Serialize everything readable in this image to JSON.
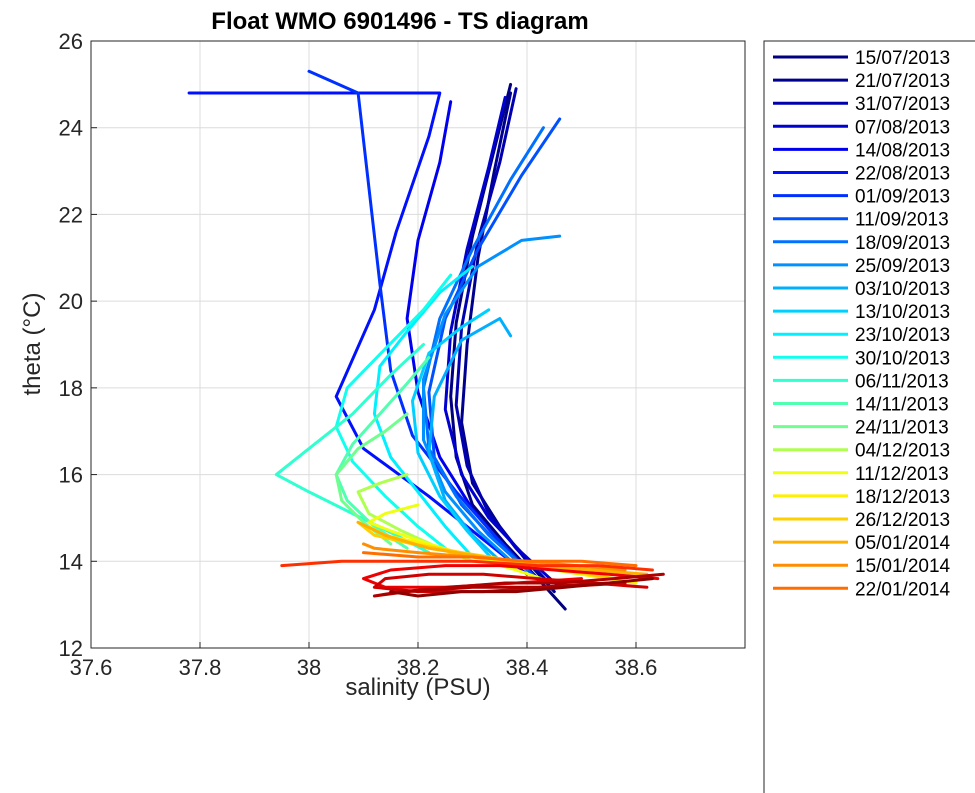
{
  "chart_data": {
    "type": "line",
    "title": "Float WMO 6901496 - TS diagram",
    "xlabel": "salinity (PSU)",
    "ylabel": "theta (°C)",
    "xlim": [
      37.6,
      38.8
    ],
    "ylim": [
      12,
      26
    ],
    "xticks": [
      "37.6",
      "37.8",
      "38",
      "38.2",
      "38.4",
      "38.6"
    ],
    "yticks": [
      "12",
      "14",
      "16",
      "18",
      "20",
      "22",
      "24",
      "26"
    ],
    "grid": true,
    "legend_position": "right outside",
    "series": [
      {
        "name": "15/07/2013",
        "color": "#000080",
        "x": [
          38.47,
          38.42,
          38.36,
          38.3,
          38.27,
          38.26,
          38.27,
          38.3,
          38.34,
          38.37
        ],
        "y": [
          12.9,
          13.6,
          14.4,
          15.3,
          16.4,
          17.8,
          19.5,
          21.5,
          23.5,
          25.0
        ]
      },
      {
        "name": "21/07/2013",
        "color": "#00008F",
        "x": [
          38.45,
          38.4,
          38.35,
          38.3,
          38.28,
          38.29,
          38.31,
          38.34,
          38.37
        ],
        "y": [
          13.3,
          14.0,
          14.8,
          15.8,
          17.2,
          19.0,
          21.0,
          23.0,
          24.8
        ]
      },
      {
        "name": "31/07/2013",
        "color": "#0000AF",
        "x": [
          38.44,
          38.38,
          38.33,
          38.29,
          38.27,
          38.28,
          38.31,
          38.35,
          38.38
        ],
        "y": [
          13.5,
          14.3,
          15.1,
          16.2,
          17.6,
          19.4,
          21.4,
          23.2,
          24.9
        ]
      },
      {
        "name": "07/08/2013",
        "color": "#0000CF",
        "x": [
          38.46,
          38.39,
          38.33,
          38.28,
          38.25,
          38.26,
          38.29,
          38.33,
          38.36
        ],
        "y": [
          13.4,
          14.2,
          15.0,
          16.0,
          17.5,
          19.3,
          21.2,
          23.1,
          24.7
        ]
      },
      {
        "name": "14/08/2013",
        "color": "#0000EF",
        "x": [
          38.42,
          38.36,
          38.3,
          38.24,
          38.2,
          38.18,
          38.2,
          38.24,
          38.26
        ],
        "y": [
          13.6,
          14.3,
          15.2,
          16.4,
          17.9,
          19.6,
          21.4,
          23.2,
          24.6
        ]
      },
      {
        "name": "22/08/2013",
        "color": "#0010FF",
        "x": [
          38.4,
          38.32,
          38.22,
          38.1,
          38.05,
          38.12,
          38.16,
          38.22,
          38.24,
          37.78
        ],
        "y": [
          13.7,
          14.5,
          15.5,
          16.6,
          17.8,
          19.8,
          21.6,
          23.8,
          24.8,
          24.8
        ]
      },
      {
        "name": "01/09/2013",
        "color": "#0030FF",
        "x": [
          38.4,
          38.34,
          38.27,
          38.19,
          38.15,
          38.13,
          38.09,
          38.0
        ],
        "y": [
          13.8,
          14.6,
          15.6,
          16.9,
          18.4,
          20.4,
          24.8,
          25.3
        ]
      },
      {
        "name": "11/09/2013",
        "color": "#0050FF",
        "x": [
          38.41,
          38.34,
          38.28,
          38.23,
          38.22,
          38.25,
          38.31,
          38.39,
          38.46
        ],
        "y": [
          13.7,
          14.5,
          15.3,
          16.4,
          17.9,
          19.6,
          21.2,
          22.9,
          24.2
        ]
      },
      {
        "name": "18/09/2013",
        "color": "#0070FF",
        "x": [
          38.4,
          38.33,
          38.27,
          38.22,
          38.21,
          38.24,
          38.3,
          38.37,
          38.43
        ],
        "y": [
          13.8,
          14.6,
          15.5,
          16.6,
          18.0,
          19.6,
          21.2,
          22.8,
          24.0
        ]
      },
      {
        "name": "25/09/2013",
        "color": "#0090FF",
        "x": [
          38.38,
          38.31,
          38.25,
          38.21,
          38.21,
          38.25,
          38.31,
          38.39,
          38.46
        ],
        "y": [
          13.9,
          14.7,
          15.6,
          16.8,
          18.2,
          19.7,
          20.8,
          21.4,
          21.5
        ]
      },
      {
        "name": "03/10/2013",
        "color": "#00B0FF",
        "x": [
          38.36,
          38.3,
          38.25,
          38.22,
          38.23,
          38.28,
          38.35,
          38.37
        ],
        "y": [
          13.9,
          14.6,
          15.4,
          16.5,
          17.8,
          19.1,
          19.6,
          19.2
        ]
      },
      {
        "name": "13/10/2013",
        "color": "#00D0FF",
        "x": [
          38.34,
          38.29,
          38.24,
          38.2,
          38.19,
          38.22,
          38.28,
          38.33
        ],
        "y": [
          14.0,
          14.7,
          15.5,
          16.5,
          17.7,
          18.8,
          19.4,
          19.8
        ]
      },
      {
        "name": "23/10/2013",
        "color": "#00F0FF",
        "x": [
          38.3,
          38.25,
          38.2,
          38.15,
          38.12,
          38.13,
          38.18,
          38.24,
          38.3
        ],
        "y": [
          14.1,
          14.8,
          15.6,
          16.4,
          17.4,
          18.5,
          19.3,
          20.2,
          20.8
        ]
      },
      {
        "name": "30/10/2013",
        "color": "#10FFEF",
        "x": [
          38.26,
          38.2,
          38.14,
          38.08,
          38.05,
          38.07,
          38.14,
          38.21,
          38.26
        ],
        "y": [
          14.2,
          14.8,
          15.5,
          16.3,
          17.1,
          18.0,
          18.9,
          19.8,
          20.6
        ]
      },
      {
        "name": "06/11/2013",
        "color": "#30FFCF",
        "x": [
          38.22,
          38.16,
          38.08,
          38.0,
          37.94,
          38.0,
          38.08,
          38.15,
          38.21
        ],
        "y": [
          14.2,
          14.6,
          15.1,
          15.6,
          16.0,
          16.6,
          17.4,
          18.3,
          19.0
        ]
      },
      {
        "name": "14/11/2013",
        "color": "#50FFAF",
        "x": [
          38.18,
          38.12,
          38.07,
          38.05,
          38.08,
          38.13,
          38.18,
          38.22
        ],
        "y": [
          14.3,
          14.8,
          15.4,
          16.0,
          16.7,
          17.4,
          18.1,
          18.7
        ]
      },
      {
        "name": "24/11/2013",
        "color": "#70FF8F",
        "x": [
          38.15,
          38.1,
          38.06,
          38.05,
          38.09,
          38.14,
          38.18
        ],
        "y": [
          14.4,
          14.9,
          15.4,
          16.0,
          16.6,
          17.0,
          17.4
        ]
      },
      {
        "name": "04/12/2013",
        "color": "#AFFF50",
        "x": [
          38.3,
          38.24,
          38.17,
          38.11,
          38.09,
          38.13,
          38.18
        ],
        "y": [
          14.0,
          14.3,
          14.7,
          15.1,
          15.6,
          15.8,
          16.0
        ]
      },
      {
        "name": "11/12/2013",
        "color": "#EFFF10",
        "x": [
          38.45,
          38.38,
          38.3,
          38.22,
          38.15,
          38.11,
          38.14,
          38.2
        ],
        "y": [
          13.5,
          13.8,
          14.1,
          14.4,
          14.7,
          14.9,
          15.1,
          15.3
        ]
      },
      {
        "name": "18/12/2013",
        "color": "#FFEF00",
        "x": [
          38.6,
          38.5,
          38.4,
          38.3,
          38.21,
          38.14,
          38.11
        ],
        "y": [
          13.5,
          13.7,
          13.9,
          14.1,
          14.4,
          14.6,
          14.8
        ]
      },
      {
        "name": "26/12/2013",
        "color": "#FFCF00",
        "x": [
          38.56,
          38.47,
          38.38,
          38.28,
          38.19,
          38.12,
          38.09
        ],
        "y": [
          13.6,
          13.8,
          14.0,
          14.2,
          14.4,
          14.6,
          14.9
        ]
      },
      {
        "name": "05/01/2014",
        "color": "#FFAF00",
        "x": [
          38.62,
          38.52,
          38.42,
          38.32,
          38.22,
          38.14,
          38.09
        ],
        "y": [
          13.7,
          13.8,
          13.9,
          14.1,
          14.3,
          14.6,
          14.9
        ]
      },
      {
        "name": "15/01/2014",
        "color": "#FF8F00",
        "x": [
          38.58,
          38.49,
          38.4,
          38.3,
          38.2,
          38.12,
          38.1
        ],
        "y": [
          13.8,
          13.9,
          14.0,
          14.1,
          14.2,
          14.3,
          14.4
        ]
      },
      {
        "name": "22/01/2014",
        "color": "#FF6F00",
        "x": [
          38.6,
          38.5,
          38.4,
          38.3,
          38.2,
          38.1
        ],
        "y": [
          13.9,
          14.0,
          14.0,
          14.1,
          14.1,
          14.2
        ]
      },
      {
        "name": "",
        "color": "#FF3000",
        "x": [
          38.63,
          38.53,
          38.42,
          38.3,
          38.18,
          38.06,
          37.95
        ],
        "y": [
          13.8,
          13.9,
          13.9,
          14.0,
          14.0,
          14.0,
          13.9
        ]
      },
      {
        "name": "",
        "color": "#EF0000",
        "x": [
          38.64,
          38.55,
          38.45,
          38.35,
          38.25,
          38.15,
          38.1,
          38.14,
          38.25,
          38.38,
          38.5
        ],
        "y": [
          13.6,
          13.7,
          13.8,
          13.9,
          13.9,
          13.8,
          13.6,
          13.4,
          13.4,
          13.5,
          13.6
        ]
      },
      {
        "name": "",
        "color": "#CF0000",
        "x": [
          38.62,
          38.52,
          38.42,
          38.32,
          38.22,
          38.14,
          38.12,
          38.2,
          38.32,
          38.45,
          38.58
        ],
        "y": [
          13.4,
          13.5,
          13.6,
          13.7,
          13.7,
          13.6,
          13.4,
          13.3,
          13.3,
          13.4,
          13.5
        ]
      },
      {
        "name": "",
        "color": "#AF0000",
        "x": [
          38.65,
          38.56,
          38.46,
          38.36,
          38.26,
          38.17,
          38.12,
          38.18,
          38.3,
          38.42,
          38.55
        ],
        "y": [
          13.7,
          13.6,
          13.5,
          13.5,
          13.4,
          13.3,
          13.2,
          13.3,
          13.4,
          13.4,
          13.5
        ]
      },
      {
        "name": "",
        "color": "#8F0000",
        "x": [
          38.63,
          38.55,
          38.47,
          38.38,
          38.28,
          38.2,
          38.15
        ],
        "y": [
          13.6,
          13.5,
          13.4,
          13.3,
          13.3,
          13.2,
          13.3
        ]
      }
    ]
  }
}
